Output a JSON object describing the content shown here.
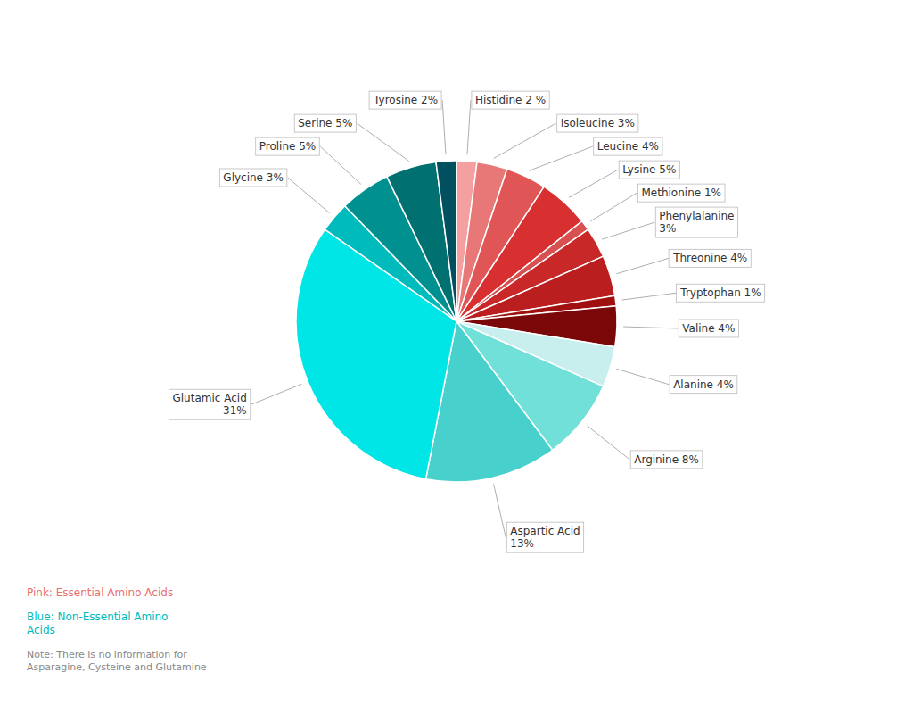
{
  "chart_data": {
    "type": "pie",
    "categories": [
      "Histidine 2 %",
      "Isoleucine 3%",
      "Leucine 4%",
      "Lysine 5%",
      "Methionine 1%",
      "Phenylalanine\n3%",
      "Threonine 4%",
      "Tryptophan 1%",
      "Valine 4%",
      "Alanine 4%",
      "Arginine 8%",
      "Aspartic Acid\n13%",
      "Glutamic Acid\n31%",
      "Glycine 3%",
      "Proline 5%",
      "Serine 5%",
      "Tyrosine 2%"
    ],
    "values": [
      2,
      3,
      4,
      5,
      1,
      3,
      4,
      1,
      4,
      4,
      8,
      13,
      31,
      3,
      5,
      5,
      2
    ],
    "colors": [
      "#F4A0A0",
      "#E87878",
      "#E05555",
      "#D83030",
      "#D85050",
      "#C82828",
      "#BB1E1E",
      "#A01010",
      "#7A0808",
      "#C8EEEE",
      "#70E0D8",
      "#48D0CC",
      "#00E5E5",
      "#00BBBB",
      "#009090",
      "#007070",
      "#005060"
    ],
    "annotations": [
      {
        "text": "Pink: Essential Amino Acids",
        "color": "#E87070"
      },
      {
        "text": "Blue: Non-Essential Amino\nAcids",
        "color": "#00BBBB"
      },
      {
        "text": "Note: There is no information for\nAsparagine, Cysteine and Glutamine",
        "color": "#888888"
      }
    ]
  }
}
